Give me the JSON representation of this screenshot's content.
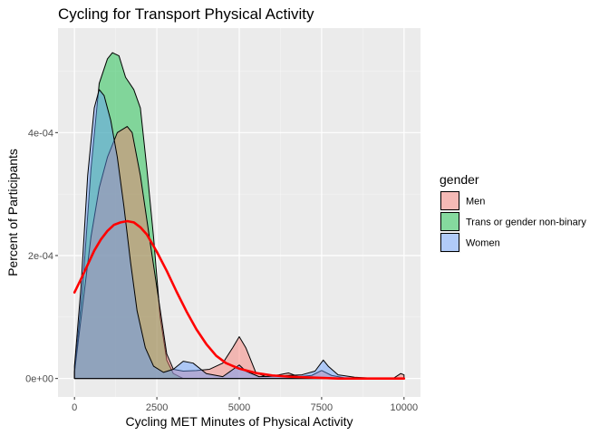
{
  "chart_data": {
    "type": "area",
    "title": "Cycling for Transport Physical Activity",
    "xlabel": "Cycling MET Minutes of Physical Activity",
    "ylabel": "Percent of Participants",
    "xlim": [
      -500,
      10500
    ],
    "ylim": [
      -3e-05,
      0.00057
    ],
    "x_ticks": [
      0,
      2500,
      5000,
      7500,
      10000
    ],
    "x_tick_labels": [
      "0",
      "2500",
      "5000",
      "7500",
      "10000"
    ],
    "y_ticks": [
      0,
      0.0002,
      0.0004
    ],
    "y_tick_labels": [
      "0e+00",
      "2e-04",
      "4e-04"
    ],
    "grid": true,
    "legend": {
      "title": "gender",
      "position": "right",
      "entries": [
        {
          "label": "Men",
          "fill": "#F8766D"
        },
        {
          "label": "Trans or gender non-binary",
          "fill": "#00BA38"
        },
        {
          "label": "Women",
          "fill": "#619CFF"
        }
      ]
    },
    "series": [
      {
        "name": "Trans or gender non-binary",
        "fill": "#00BA38",
        "points": [
          [
            0,
            0
          ],
          [
            0,
            1e-05
          ],
          [
            250,
            0.00015
          ],
          [
            500,
            0.00034
          ],
          [
            750,
            0.00048
          ],
          [
            1000,
            0.00052
          ],
          [
            1150,
            0.00053
          ],
          [
            1350,
            0.000525
          ],
          [
            1550,
            0.00049
          ],
          [
            1800,
            0.00047
          ],
          [
            2000,
            0.00044
          ],
          [
            2200,
            0.00034
          ],
          [
            2400,
            0.00023
          ],
          [
            2600,
            0.0001
          ],
          [
            2800,
            3e-05
          ],
          [
            3000,
            8e-06
          ],
          [
            3300,
            0
          ],
          [
            10000,
            0
          ]
        ]
      },
      {
        "name": "Men",
        "fill": "#F8766D",
        "points": [
          [
            0,
            0
          ],
          [
            0,
            1e-05
          ],
          [
            250,
            0.00012
          ],
          [
            500,
            0.00023
          ],
          [
            750,
            0.00031
          ],
          [
            1000,
            0.00036
          ],
          [
            1300,
            0.0004
          ],
          [
            1600,
            0.00041
          ],
          [
            1750,
            0.0004
          ],
          [
            2000,
            0.00033
          ],
          [
            2300,
            0.00022
          ],
          [
            2550,
            0.00013
          ],
          [
            2800,
            4e-05
          ],
          [
            3000,
            1.5e-05
          ],
          [
            3300,
            1.2e-05
          ],
          [
            3700,
            1.3e-05
          ],
          [
            4100,
            1.5e-05
          ],
          [
            4500,
            2.5e-05
          ],
          [
            4800,
            5e-05
          ],
          [
            5000,
            6.8e-05
          ],
          [
            5200,
            5e-05
          ],
          [
            5500,
            1e-05
          ],
          [
            5800,
            3e-06
          ],
          [
            6200,
            6e-06
          ],
          [
            6500,
            9e-06
          ],
          [
            6800,
            3e-06
          ],
          [
            7200,
            5e-06
          ],
          [
            7500,
            1.3e-05
          ],
          [
            7800,
            5e-06
          ],
          [
            8200,
            1e-06
          ],
          [
            9000,
            0
          ],
          [
            9700,
            1e-06
          ],
          [
            9900,
            8e-06
          ],
          [
            10000,
            6e-06
          ],
          [
            10000,
            0
          ]
        ]
      },
      {
        "name": "Women",
        "fill": "#619CFF",
        "points": [
          [
            0,
            0
          ],
          [
            0,
            2e-05
          ],
          [
            200,
            0.00015
          ],
          [
            400,
            0.00033
          ],
          [
            600,
            0.00044
          ],
          [
            750,
            0.00047
          ],
          [
            900,
            0.00046
          ],
          [
            1100,
            0.00042
          ],
          [
            1300,
            0.00036
          ],
          [
            1500,
            0.00028
          ],
          [
            1700,
            0.00019
          ],
          [
            1900,
            0.00011
          ],
          [
            2150,
            5e-05
          ],
          [
            2400,
            2e-05
          ],
          [
            2700,
            1e-05
          ],
          [
            3000,
            1.5e-05
          ],
          [
            3300,
            2.8e-05
          ],
          [
            3600,
            2.5e-05
          ],
          [
            4000,
            8e-06
          ],
          [
            4500,
            3e-06
          ],
          [
            5000,
            2.2e-05
          ],
          [
            5200,
            1.2e-05
          ],
          [
            5600,
            3e-06
          ],
          [
            6200,
            4e-06
          ],
          [
            6500,
            5e-06
          ],
          [
            6900,
            6e-06
          ],
          [
            7300,
            1.2e-05
          ],
          [
            7550,
            3e-05
          ],
          [
            7700,
            2e-05
          ],
          [
            8000,
            6e-06
          ],
          [
            8500,
            2e-06
          ],
          [
            9200,
            0
          ],
          [
            10000,
            0
          ]
        ]
      }
    ],
    "overlay_line": {
      "color": "#FF0000",
      "points": [
        [
          0,
          0.00014
        ],
        [
          200,
          0.000162
        ],
        [
          400,
          0.000185
        ],
        [
          600,
          0.000208
        ],
        [
          800,
          0.000226
        ],
        [
          1000,
          0.00024
        ],
        [
          1200,
          0.00025
        ],
        [
          1400,
          0.000254
        ],
        [
          1600,
          0.000256
        ],
        [
          1800,
          0.000254
        ],
        [
          2000,
          0.000246
        ],
        [
          2200,
          0.000234
        ],
        [
          2500,
          0.000206
        ],
        [
          2800,
          0.000175
        ],
        [
          3100,
          0.000141
        ],
        [
          3400,
          0.000109
        ],
        [
          3700,
          8e-05
        ],
        [
          4000,
          5.6e-05
        ],
        [
          4300,
          3.7e-05
        ],
        [
          4600,
          2.5e-05
        ],
        [
          5000,
          1.6e-05
        ],
        [
          5500,
          9e-06
        ],
        [
          6000,
          5e-06
        ],
        [
          6500,
          3e-06
        ],
        [
          7000,
          2e-06
        ],
        [
          8000,
          0
        ],
        [
          10000,
          0
        ]
      ]
    }
  }
}
